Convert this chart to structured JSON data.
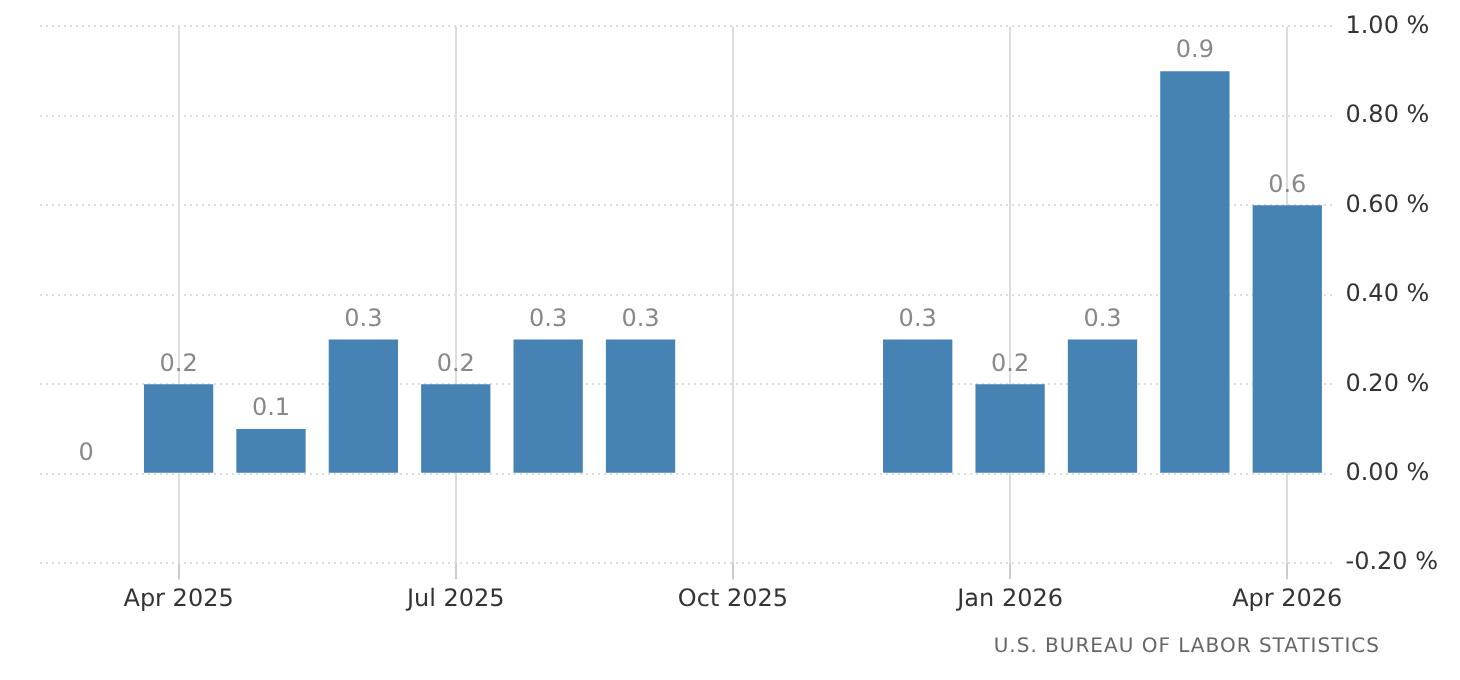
{
  "chart_data": {
    "type": "bar",
    "categories": [
      null,
      "Apr 2025",
      null,
      null,
      "Jul 2025",
      null,
      null,
      "Oct 2025",
      null,
      null,
      "Jan 2026",
      null,
      null,
      "Apr 2026"
    ],
    "values": [
      0,
      0.2,
      0.1,
      0.3,
      0.2,
      0.3,
      0.3,
      null,
      null,
      0.3,
      0.2,
      0.3,
      0.9,
      0.6
    ],
    "color": "#4682b4",
    "ylim": [
      -0.2,
      1.0
    ],
    "yticks": [
      {
        "value": -0.2,
        "label": "-0.20 %"
      },
      {
        "value": 0,
        "label": "0.00 %"
      },
      {
        "value": 0.2,
        "label": "0.20 %"
      },
      {
        "value": 0.4,
        "label": "0.40 %"
      },
      {
        "value": 0.6,
        "label": "0.60 %"
      },
      {
        "value": 0.8,
        "label": "0.80 %"
      },
      {
        "value": 1.0,
        "label": "1.00 %"
      }
    ],
    "grid": true,
    "data_labels": true,
    "annotations": [
      "U.S. BUREAU OF LABOR STATISTICS"
    ]
  }
}
